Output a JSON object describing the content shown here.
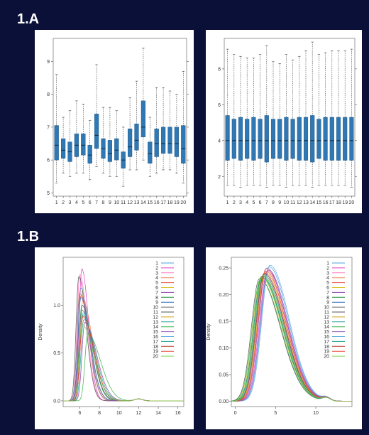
{
  "labels": {
    "section_a": "1.A",
    "section_b": "1.B"
  },
  "colors": {
    "background": "#0b1038",
    "box_fill": "#2f78b3"
  },
  "chart_data": [
    {
      "id": "box_raw",
      "type": "box",
      "categories": [
        "1",
        "2",
        "3",
        "4",
        "5",
        "6",
        "7",
        "8",
        "9",
        "10",
        "11",
        "12",
        "13",
        "14",
        "15",
        "16",
        "17",
        "18",
        "19",
        "20"
      ],
      "ylim": [
        4.9,
        9.7
      ],
      "yticks": [
        5,
        6,
        7,
        8,
        9
      ],
      "boxes": [
        {
          "whisker_low": 5.3,
          "q1": 6.0,
          "median": 6.45,
          "q3": 7.05,
          "whisker_high": 8.6
        },
        {
          "whisker_low": 5.6,
          "q1": 6.05,
          "median": 6.3,
          "q3": 6.65,
          "whisker_high": 7.3
        },
        {
          "whisker_low": 5.5,
          "q1": 5.95,
          "median": 6.25,
          "q3": 6.55,
          "whisker_high": 7.5
        },
        {
          "whisker_low": 5.6,
          "q1": 6.1,
          "median": 6.45,
          "q3": 6.8,
          "whisker_high": 7.8
        },
        {
          "whisker_low": 5.6,
          "q1": 6.15,
          "median": 6.45,
          "q3": 6.8,
          "whisker_high": 7.7
        },
        {
          "whisker_low": 5.4,
          "q1": 5.9,
          "median": 6.15,
          "q3": 6.45,
          "whisker_high": 7.2
        },
        {
          "whisker_low": 5.8,
          "q1": 6.35,
          "median": 6.75,
          "q3": 7.4,
          "whisker_high": 8.9
        },
        {
          "whisker_low": 5.6,
          "q1": 6.05,
          "median": 6.35,
          "q3": 6.65,
          "whisker_high": 7.6
        },
        {
          "whisker_low": 5.5,
          "q1": 5.95,
          "median": 6.2,
          "q3": 6.6,
          "whisker_high": 7.6
        },
        {
          "whisker_low": 5.5,
          "q1": 6.0,
          "median": 6.3,
          "q3": 6.65,
          "whisker_high": 7.5
        },
        {
          "whisker_low": 5.2,
          "q1": 5.75,
          "median": 6.0,
          "q3": 6.25,
          "whisker_high": 7.0
        },
        {
          "whisker_low": 5.7,
          "q1": 6.1,
          "median": 6.4,
          "q3": 6.95,
          "whisker_high": 7.9
        },
        {
          "whisker_low": 5.7,
          "q1": 6.3,
          "median": 6.6,
          "q3": 7.1,
          "whisker_high": 8.4
        },
        {
          "whisker_low": 6.0,
          "q1": 6.7,
          "median": 7.0,
          "q3": 7.8,
          "whisker_high": 9.4
        },
        {
          "whisker_low": 5.5,
          "q1": 5.9,
          "median": 6.2,
          "q3": 6.55,
          "whisker_high": 7.3
        },
        {
          "whisker_low": 5.6,
          "q1": 6.1,
          "median": 6.5,
          "q3": 6.95,
          "whisker_high": 8.2
        },
        {
          "whisker_low": 5.7,
          "q1": 6.2,
          "median": 6.5,
          "q3": 7.0,
          "whisker_high": 8.2
        },
        {
          "whisker_low": 5.7,
          "q1": 6.2,
          "median": 6.5,
          "q3": 7.0,
          "whisker_high": 8.1
        },
        {
          "whisker_low": 5.6,
          "q1": 6.1,
          "median": 6.5,
          "q3": 7.0,
          "whisker_high": 8.0
        },
        {
          "whisker_low": 5.3,
          "q1": 5.9,
          "median": 6.35,
          "q3": 7.05,
          "whisker_high": 8.7
        }
      ]
    },
    {
      "id": "box_normalized",
      "type": "box",
      "categories": [
        "1",
        "2",
        "3",
        "4",
        "5",
        "6",
        "7",
        "8",
        "9",
        "10",
        "11",
        "12",
        "13",
        "14",
        "15",
        "16",
        "17",
        "18",
        "19",
        "20"
      ],
      "ylim": [
        0.9,
        9.7
      ],
      "yticks": [
        2,
        4,
        6,
        8
      ],
      "boxes": [
        {
          "whisker_low": 1.5,
          "q1": 2.9,
          "median": 4.0,
          "q3": 5.4,
          "whisker_high": 9.1
        },
        {
          "whisker_low": 1.5,
          "q1": 3.0,
          "median": 4.0,
          "q3": 5.2,
          "whisker_high": 8.8
        },
        {
          "whisker_low": 1.4,
          "q1": 2.9,
          "median": 4.0,
          "q3": 5.3,
          "whisker_high": 8.7
        },
        {
          "whisker_low": 1.5,
          "q1": 3.0,
          "median": 4.0,
          "q3": 5.2,
          "whisker_high": 8.6
        },
        {
          "whisker_low": 1.5,
          "q1": 2.9,
          "median": 4.0,
          "q3": 5.3,
          "whisker_high": 8.6
        },
        {
          "whisker_low": 1.5,
          "q1": 3.0,
          "median": 4.0,
          "q3": 5.2,
          "whisker_high": 8.8
        },
        {
          "whisker_low": 1.4,
          "q1": 2.8,
          "median": 4.0,
          "q3": 5.4,
          "whisker_high": 9.3
        },
        {
          "whisker_low": 1.5,
          "q1": 3.0,
          "median": 4.0,
          "q3": 5.2,
          "whisker_high": 8.4
        },
        {
          "whisker_low": 1.5,
          "q1": 3.0,
          "median": 4.0,
          "q3": 5.2,
          "whisker_high": 8.3
        },
        {
          "whisker_low": 1.4,
          "q1": 2.9,
          "median": 4.0,
          "q3": 5.3,
          "whisker_high": 8.8
        },
        {
          "whisker_low": 1.5,
          "q1": 3.0,
          "median": 4.0,
          "q3": 5.2,
          "whisker_high": 8.5
        },
        {
          "whisker_low": 1.5,
          "q1": 2.9,
          "median": 4.0,
          "q3": 5.3,
          "whisker_high": 8.7
        },
        {
          "whisker_low": 1.5,
          "q1": 2.9,
          "median": 4.0,
          "q3": 5.3,
          "whisker_high": 9.0
        },
        {
          "whisker_low": 1.4,
          "q1": 2.8,
          "median": 4.0,
          "q3": 5.4,
          "whisker_high": 9.5
        },
        {
          "whisker_low": 1.5,
          "q1": 3.0,
          "median": 4.0,
          "q3": 5.2,
          "whisker_high": 8.8
        },
        {
          "whisker_low": 1.5,
          "q1": 2.9,
          "median": 4.0,
          "q3": 5.3,
          "whisker_high": 8.9
        },
        {
          "whisker_low": 1.5,
          "q1": 2.9,
          "median": 4.0,
          "q3": 5.3,
          "whisker_high": 9.0
        },
        {
          "whisker_low": 1.5,
          "q1": 2.9,
          "median": 4.0,
          "q3": 5.3,
          "whisker_high": 9.0
        },
        {
          "whisker_low": 1.5,
          "q1": 2.9,
          "median": 4.0,
          "q3": 5.3,
          "whisker_high": 9.0
        },
        {
          "whisker_low": 1.4,
          "q1": 2.9,
          "median": 4.0,
          "q3": 5.3,
          "whisker_high": 9.1
        }
      ]
    },
    {
      "id": "density_raw",
      "type": "line",
      "ylabel": "Density",
      "xlim": [
        4.3,
        16.6
      ],
      "ylim": [
        -0.06,
        1.5
      ],
      "xticks": [
        6,
        8,
        10,
        12,
        14,
        16
      ],
      "yticks": [
        0.0,
        0.5,
        1.0
      ],
      "ytick_labels": [
        "0.0",
        "0.5",
        "1.0"
      ],
      "legend_position": "right",
      "series": [
        {
          "name": "1",
          "color": "#4aa3df",
          "peak_x": 6.1,
          "peak_y": 1.18
        },
        {
          "name": "2",
          "color": "#e040c8",
          "peak_x": 6.2,
          "peak_y": 1.38
        },
        {
          "name": "3",
          "color": "#ff80c0",
          "peak_x": 6.0,
          "peak_y": 1.32
        },
        {
          "name": "4",
          "color": "#f28a5e",
          "peak_x": 6.3,
          "peak_y": 1.05
        },
        {
          "name": "5",
          "color": "#e85a4f",
          "peak_x": 6.1,
          "peak_y": 1.1
        },
        {
          "name": "6",
          "color": "#d9c531",
          "peak_x": 6.0,
          "peak_y": 1.15
        },
        {
          "name": "7",
          "color": "#8e44ad",
          "peak_x": 6.5,
          "peak_y": 0.82
        },
        {
          "name": "8",
          "color": "#1f8f3a",
          "peak_x": 6.2,
          "peak_y": 1.0
        },
        {
          "name": "9",
          "color": "#2c6fbf",
          "peak_x": 6.1,
          "peak_y": 1.08
        },
        {
          "name": "10",
          "color": "#6b6b6b",
          "peak_x": 6.2,
          "peak_y": 0.95
        },
        {
          "name": "11",
          "color": "#555555",
          "peak_x": 5.9,
          "peak_y": 1.3
        },
        {
          "name": "12",
          "color": "#d4a017",
          "peak_x": 6.3,
          "peak_y": 0.9
        },
        {
          "name": "13",
          "color": "#2aa198",
          "peak_x": 6.4,
          "peak_y": 0.85
        },
        {
          "name": "14",
          "color": "#3cb44b",
          "peak_x": 6.8,
          "peak_y": 0.7
        },
        {
          "name": "15",
          "color": "#9b59b6",
          "peak_x": 6.0,
          "peak_y": 1.12
        },
        {
          "name": "16",
          "color": "#5dade2",
          "peak_x": 6.3,
          "peak_y": 0.92
        },
        {
          "name": "17",
          "color": "#16a085",
          "peak_x": 6.3,
          "peak_y": 0.9
        },
        {
          "name": "18",
          "color": "#c0392b",
          "peak_x": 6.3,
          "peak_y": 0.88
        },
        {
          "name": "19",
          "color": "#e74c3c",
          "peak_x": 6.3,
          "peak_y": 0.88
        },
        {
          "name": "20",
          "color": "#7ed957",
          "peak_x": 6.2,
          "peak_y": 0.8
        }
      ]
    },
    {
      "id": "density_normalized",
      "type": "line",
      "ylabel": "Density",
      "xlim": [
        -0.5,
        14.5
      ],
      "ylim": [
        -0.01,
        0.27
      ],
      "xticks": [
        0,
        5,
        10
      ],
      "yticks": [
        0.0,
        0.05,
        0.1,
        0.15,
        0.2,
        0.25
      ],
      "ytick_labels": [
        "0.00",
        "0.05",
        "0.10",
        "0.15",
        "0.20",
        "0.25"
      ],
      "legend_position": "right",
      "series": [
        {
          "name": "1",
          "color": "#4aa3df",
          "peak_x": 4.2,
          "peak_y": 0.252
        },
        {
          "name": "2",
          "color": "#e040c8",
          "peak_x": 4.0,
          "peak_y": 0.245
        },
        {
          "name": "3",
          "color": "#ff80c0",
          "peak_x": 3.6,
          "peak_y": 0.24
        },
        {
          "name": "4",
          "color": "#f28a5e",
          "peak_x": 3.8,
          "peak_y": 0.248
        },
        {
          "name": "5",
          "color": "#e85a4f",
          "peak_x": 3.5,
          "peak_y": 0.238
        },
        {
          "name": "6",
          "color": "#d9c531",
          "peak_x": 3.2,
          "peak_y": 0.232
        },
        {
          "name": "7",
          "color": "#8e44ad",
          "peak_x": 3.9,
          "peak_y": 0.25
        },
        {
          "name": "8",
          "color": "#1f8f3a",
          "peak_x": 3.3,
          "peak_y": 0.235
        },
        {
          "name": "9",
          "color": "#2c6fbf",
          "peak_x": 3.6,
          "peak_y": 0.24
        },
        {
          "name": "10",
          "color": "#6b6b6b",
          "peak_x": 3.4,
          "peak_y": 0.236
        },
        {
          "name": "11",
          "color": "#555555",
          "peak_x": 3.0,
          "peak_y": 0.23
        },
        {
          "name": "12",
          "color": "#d4a017",
          "peak_x": 3.7,
          "peak_y": 0.242
        },
        {
          "name": "13",
          "color": "#2aa198",
          "peak_x": 3.5,
          "peak_y": 0.238
        },
        {
          "name": "14",
          "color": "#3cb44b",
          "peak_x": 3.1,
          "peak_y": 0.228
        },
        {
          "name": "15",
          "color": "#9b59b6",
          "peak_x": 4.1,
          "peak_y": 0.246
        },
        {
          "name": "16",
          "color": "#5dade2",
          "peak_x": 4.3,
          "peak_y": 0.255
        },
        {
          "name": "17",
          "color": "#16a085",
          "peak_x": 3.3,
          "peak_y": 0.232
        },
        {
          "name": "18",
          "color": "#c0392b",
          "peak_x": 3.6,
          "peak_y": 0.24
        },
        {
          "name": "19",
          "color": "#e74c3c",
          "peak_x": 3.8,
          "peak_y": 0.244
        },
        {
          "name": "20",
          "color": "#7ed957",
          "peak_x": 3.4,
          "peak_y": 0.236
        }
      ]
    }
  ]
}
